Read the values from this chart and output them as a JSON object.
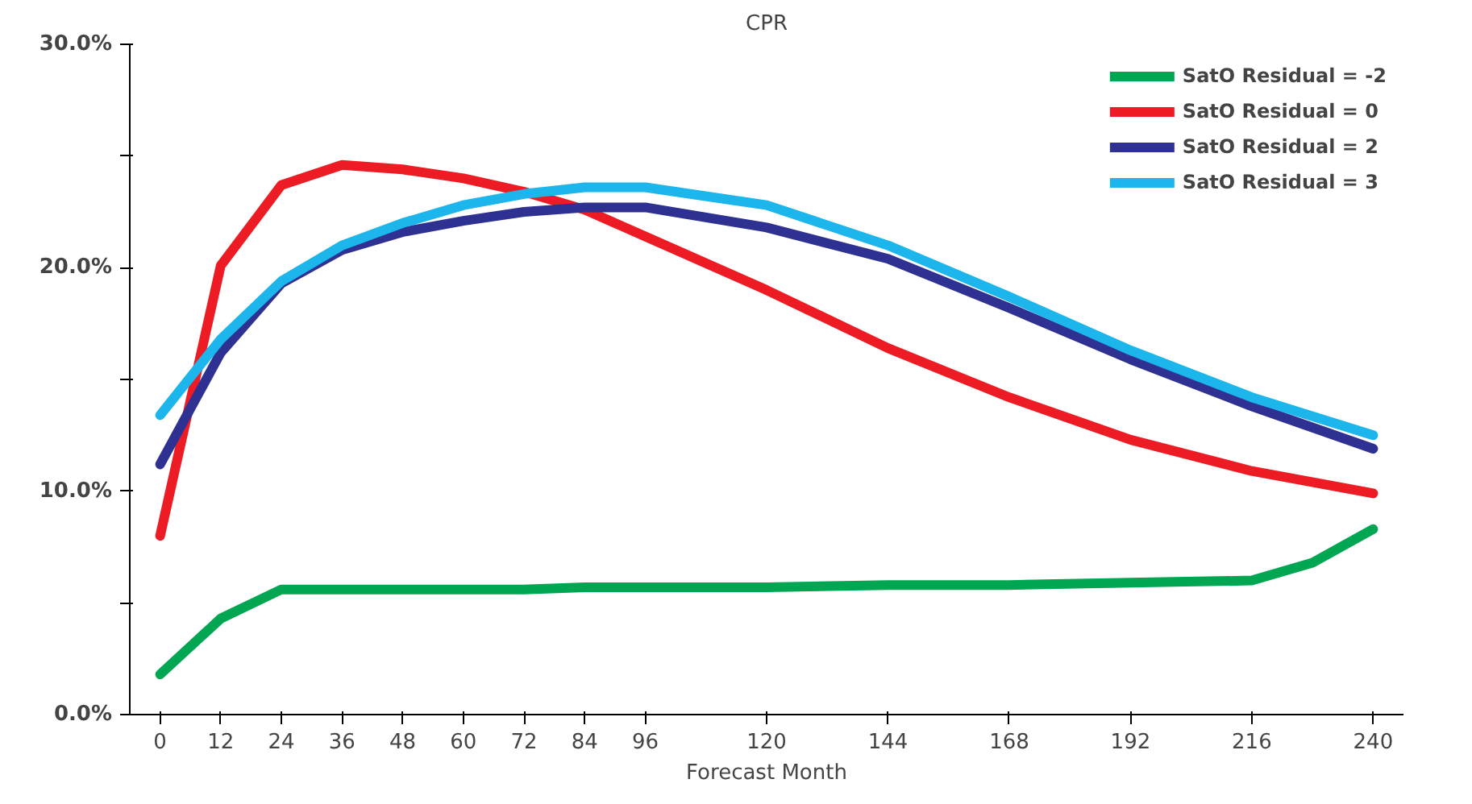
{
  "chart_data": {
    "type": "line",
    "title": "CPR",
    "xlabel": "Forecast Month",
    "x": [
      0,
      12,
      24,
      36,
      48,
      60,
      72,
      84,
      96,
      120,
      144,
      168,
      192,
      216,
      240
    ],
    "series": [
      {
        "name": "SatO Residual = -2",
        "color": "#00a651",
        "x": [
          0,
          12,
          24,
          36,
          48,
          60,
          72,
          84,
          96,
          120,
          144,
          168,
          192,
          216,
          228,
          240
        ],
        "values": [
          1.8,
          4.3,
          5.6,
          5.6,
          5.6,
          5.6,
          5.6,
          5.7,
          5.7,
          5.7,
          5.8,
          5.8,
          5.9,
          6.0,
          6.8,
          8.3
        ]
      },
      {
        "name": "SatO Residual = 0",
        "color": "#ed1c24",
        "values": [
          8.0,
          20.1,
          23.7,
          24.6,
          24.4,
          24.0,
          23.4,
          22.6,
          21.4,
          19.0,
          16.4,
          14.2,
          12.3,
          10.9,
          9.9
        ]
      },
      {
        "name": "SatO Residual = 2",
        "color": "#2e3192",
        "values": [
          11.2,
          16.2,
          19.3,
          20.8,
          21.6,
          22.1,
          22.5,
          22.7,
          22.7,
          21.8,
          20.4,
          18.2,
          15.9,
          13.8,
          11.9
        ]
      },
      {
        "name": "SatO Residual = 3",
        "color": "#1cb5ec",
        "values": [
          13.4,
          16.8,
          19.4,
          21.0,
          22.0,
          22.8,
          23.3,
          23.6,
          23.6,
          22.8,
          21.0,
          18.7,
          16.3,
          14.2,
          12.5
        ]
      }
    ],
    "xlim": [
      -6,
      246
    ],
    "xticks": [
      0,
      12,
      24,
      36,
      48,
      60,
      72,
      84,
      96,
      120,
      144,
      168,
      192,
      216,
      240
    ],
    "ylim": [
      0,
      30
    ],
    "yticks": [
      {
        "value": 0,
        "label": "0.0%"
      },
      {
        "value": 5,
        "label": null
      },
      {
        "value": 10,
        "label": "10.0%"
      },
      {
        "value": 15,
        "label": null
      },
      {
        "value": 20,
        "label": "20.0%"
      },
      {
        "value": 25,
        "label": null
      },
      {
        "value": 30,
        "label": "30.0%"
      }
    ],
    "grid": false,
    "legend": "top right",
    "marker": "none",
    "line_style": "solid"
  }
}
